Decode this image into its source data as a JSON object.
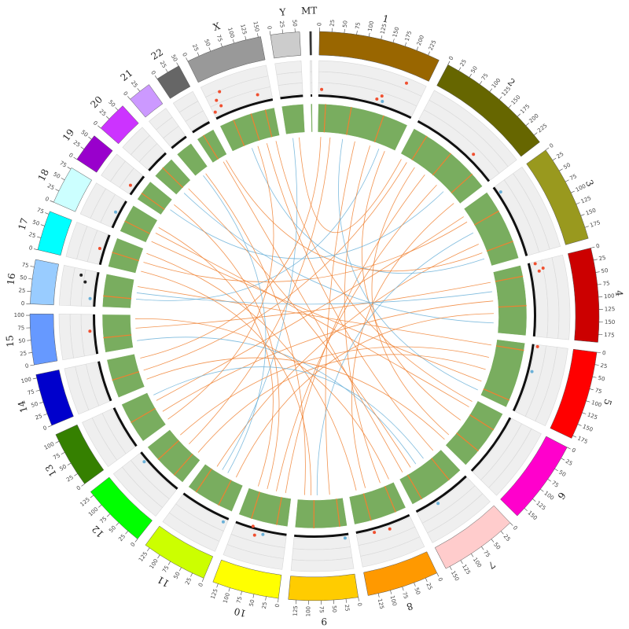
{
  "chart_data": {
    "type": "circos",
    "chromosomes": [
      {
        "name": "1",
        "size": 249,
        "color": "#996600",
        "ticks": [
          0,
          25,
          50,
          75,
          100,
          125,
          150,
          175,
          200,
          225
        ]
      },
      {
        "name": "2",
        "size": 243,
        "color": "#666600",
        "ticks": [
          0,
          25,
          50,
          75,
          100,
          125,
          150,
          175,
          200,
          225
        ]
      },
      {
        "name": "3",
        "size": 198,
        "color": "#99991e",
        "ticks": [
          0,
          25,
          50,
          75,
          100,
          125,
          150,
          175
        ]
      },
      {
        "name": "4",
        "size": 191,
        "color": "#cc0000",
        "ticks": [
          0,
          25,
          50,
          75,
          100,
          125,
          150,
          175
        ]
      },
      {
        "name": "5",
        "size": 181,
        "color": "#ff0000",
        "ticks": [
          0,
          25,
          50,
          75,
          100,
          125,
          150,
          175
        ]
      },
      {
        "name": "6",
        "size": 171,
        "color": "#ff00cc",
        "ticks": [
          0,
          25,
          50,
          75,
          100,
          125,
          150
        ]
      },
      {
        "name": "7",
        "size": 159,
        "color": "#ffcccc",
        "ticks": [
          0,
          25,
          50,
          75,
          100,
          125,
          150
        ]
      },
      {
        "name": "8",
        "size": 146,
        "color": "#ff9900",
        "ticks": [
          0,
          25,
          50,
          75,
          100,
          125
        ]
      },
      {
        "name": "9",
        "size": 141,
        "color": "#ffcc00",
        "ticks": [
          0,
          25,
          50,
          75,
          100,
          125
        ]
      },
      {
        "name": "10",
        "size": 136,
        "color": "#ffff00",
        "ticks": [
          0,
          25,
          50,
          75,
          100,
          125
        ]
      },
      {
        "name": "11",
        "size": 135,
        "color": "#ccff00",
        "ticks": [
          0,
          25,
          50,
          75,
          100,
          125
        ]
      },
      {
        "name": "12",
        "size": 134,
        "color": "#00ff00",
        "ticks": [
          0,
          25,
          50,
          75,
          100,
          125
        ]
      },
      {
        "name": "13",
        "size": 115,
        "color": "#358000",
        "ticks": [
          0,
          25,
          50,
          75,
          100
        ]
      },
      {
        "name": "14",
        "size": 107,
        "color": "#0000cc",
        "ticks": [
          0,
          25,
          50,
          75,
          100
        ]
      },
      {
        "name": "15",
        "size": 103,
        "color": "#6699ff",
        "ticks": [
          0,
          25,
          50,
          75,
          100
        ]
      },
      {
        "name": "16",
        "size": 90,
        "color": "#99ccff",
        "ticks": [
          0,
          25,
          50,
          75
        ]
      },
      {
        "name": "17",
        "size": 81,
        "color": "#00ffff",
        "ticks": [
          0,
          25,
          50,
          75
        ]
      },
      {
        "name": "18",
        "size": 78,
        "color": "#ccffff",
        "ticks": [
          0,
          25,
          50,
          75
        ]
      },
      {
        "name": "19",
        "size": 59,
        "color": "#9900cc",
        "ticks": [
          0,
          25,
          50
        ]
      },
      {
        "name": "20",
        "size": 63,
        "color": "#cc33ff",
        "ticks": [
          0,
          25,
          50
        ]
      },
      {
        "name": "21",
        "size": 48,
        "color": "#cc99ff",
        "ticks": [
          0,
          25
        ]
      },
      {
        "name": "22",
        "size": 51,
        "color": "#666666",
        "ticks": [
          0,
          25,
          50
        ]
      },
      {
        "name": "X",
        "size": 155,
        "color": "#999999",
        "ticks": [
          0,
          25,
          50,
          75,
          100,
          125,
          150
        ]
      },
      {
        "name": "Y",
        "size": 59,
        "color": "#cccccc",
        "ticks": [
          0,
          25,
          50
        ]
      },
      {
        "name": "MT",
        "size": 0.017,
        "color": "#333333",
        "ticks": []
      }
    ],
    "scatter_ylim": [
      0,
      10
    ],
    "points": [
      {
        "chr": "1",
        "pos": 8,
        "value": 1.5,
        "color": "#f05030"
      },
      {
        "chr": "1",
        "pos": 150,
        "value": 1.2,
        "color": "#f05030"
      },
      {
        "chr": "1",
        "pos": 160,
        "value": 2.5,
        "color": "#f05030"
      },
      {
        "chr": "1",
        "pos": 165,
        "value": 1.0,
        "color": "#6ab0d8"
      },
      {
        "chr": "1",
        "pos": 205,
        "value": 8.5,
        "color": "#f05030"
      },
      {
        "chr": "2",
        "pos": 165,
        "value": 1.5,
        "color": "#f05030"
      },
      {
        "chr": "3",
        "pos": 20,
        "value": 0.6,
        "color": "#6ab0d8"
      },
      {
        "chr": "4",
        "pos": 5,
        "value": 1.5,
        "color": "#f05030"
      },
      {
        "chr": "4",
        "pos": 20,
        "value": 3.5,
        "color": "#f05030"
      },
      {
        "chr": "4",
        "pos": 25,
        "value": 2.2,
        "color": "#f05030"
      },
      {
        "chr": "5",
        "pos": 5,
        "value": 1.0,
        "color": "#f05030"
      },
      {
        "chr": "5",
        "pos": 70,
        "value": 0.8,
        "color": "#6ab0d8"
      },
      {
        "chr": "7",
        "pos": 100,
        "value": 0.8,
        "color": "#6ab0d8"
      },
      {
        "chr": "8",
        "pos": 60,
        "value": 1.2,
        "color": "#f05030"
      },
      {
        "chr": "8",
        "pos": 100,
        "value": 0.8,
        "color": "#f05030"
      },
      {
        "chr": "9",
        "pos": 10,
        "value": 0.7,
        "color": "#6ab0d8"
      },
      {
        "chr": "10",
        "pos": 60,
        "value": 0.8,
        "color": "#6ab0d8"
      },
      {
        "chr": "10",
        "pos": 80,
        "value": 1.6,
        "color": "#f05030"
      },
      {
        "chr": "10",
        "pos": 90,
        "value": -0.8,
        "color": "#f05030"
      },
      {
        "chr": "11",
        "pos": 10,
        "value": 1.0,
        "color": "#6ab0d8"
      },
      {
        "chr": "12",
        "pos": 110,
        "value": 0.7,
        "color": "#6ab0d8"
      },
      {
        "chr": "15",
        "pos": 60,
        "value": 1.0,
        "color": "#f05030"
      },
      {
        "chr": "16",
        "pos": 20,
        "value": 1.0,
        "color": "#6ab0d8"
      },
      {
        "chr": "16",
        "pos": 60,
        "value": 3.0,
        "color": "#222222"
      },
      {
        "chr": "16",
        "pos": 75,
        "value": 4.5,
        "color": "#222222"
      },
      {
        "chr": "17",
        "pos": 40,
        "value": 1.0,
        "color": "#f05030"
      },
      {
        "chr": "18",
        "pos": 40,
        "value": 0.8,
        "color": "#6ab0d8"
      },
      {
        "chr": "19",
        "pos": 20,
        "value": 1.2,
        "color": "#f05030"
      },
      {
        "chr": "X",
        "pos": 5,
        "value": 1.5,
        "color": "#f05030"
      },
      {
        "chr": "X",
        "pos": 20,
        "value": 4.5,
        "color": "#f05030"
      },
      {
        "chr": "X",
        "pos": 25,
        "value": 2.5,
        "color": "#f05030"
      },
      {
        "chr": "X",
        "pos": 35,
        "value": 6.5,
        "color": "#f05030"
      },
      {
        "chr": "X",
        "pos": 120,
        "value": 2.0,
        "color": "#f05030"
      }
    ],
    "heatmap_color": "#79ad5f",
    "heat_stripes": {
      "chr": [
        "1",
        "1",
        "1",
        "2",
        "2",
        "2",
        "3",
        "3",
        "4",
        "4",
        "5",
        "5",
        "6",
        "6",
        "7",
        "7",
        "8",
        "8",
        "9",
        "9",
        "10",
        "10",
        "11",
        "11",
        "12",
        "12",
        "13",
        "14",
        "15",
        "16",
        "17",
        "18",
        "19",
        "20",
        "22",
        "X",
        "X",
        "X"
      ],
      "pos": [
        20,
        90,
        180,
        40,
        120,
        200,
        60,
        150,
        30,
        110,
        20,
        160,
        50,
        120,
        40,
        130,
        30,
        100,
        20,
        90,
        30,
        100,
        40,
        110,
        30,
        90,
        60,
        50,
        40,
        30,
        40,
        30,
        20,
        30,
        20,
        40,
        90,
        130
      ]
    },
    "stripe_color": "#f08030",
    "links": [
      {
        "chr1": "1",
        "pos1": 40,
        "chr2": "12",
        "pos2": 60,
        "color": "#f08030"
      },
      {
        "chr1": "1",
        "pos1": 120,
        "chr2": "9",
        "pos2": 40,
        "color": "#f08030"
      },
      {
        "chr1": "1",
        "pos1": 200,
        "chr2": "16",
        "pos2": 30,
        "color": "#6ab0d8"
      },
      {
        "chr1": "1",
        "pos1": 220,
        "chr2": "6",
        "pos2": 80,
        "color": "#f08030"
      },
      {
        "chr1": "2",
        "pos1": 30,
        "chr2": "14",
        "pos2": 50,
        "color": "#f08030"
      },
      {
        "chr1": "2",
        "pos1": 100,
        "chr2": "10",
        "pos2": 20,
        "color": "#f08030"
      },
      {
        "chr1": "2",
        "pos1": 180,
        "chr2": "19",
        "pos2": 30,
        "color": "#6ab0d8"
      },
      {
        "chr1": "2",
        "pos1": 230,
        "chr2": "8",
        "pos2": 90,
        "color": "#f08030"
      },
      {
        "chr1": "3",
        "pos1": 40,
        "chr2": "17",
        "pos2": 40,
        "color": "#f08030"
      },
      {
        "chr1": "3",
        "pos1": 120,
        "chr2": "11",
        "pos2": 100,
        "color": "#f08030"
      },
      {
        "chr1": "3",
        "pos1": 170,
        "chr2": "X",
        "pos2": 60,
        "color": "#6ab0d8"
      },
      {
        "chr1": "4",
        "pos1": 30,
        "chr2": "15",
        "pos2": 60,
        "color": "#f08030"
      },
      {
        "chr1": "4",
        "pos1": 90,
        "chr2": "13",
        "pos2": 40,
        "color": "#f08030"
      },
      {
        "chr1": "4",
        "pos1": 160,
        "chr2": "20",
        "pos2": 20,
        "color": "#6ab0d8"
      },
      {
        "chr1": "5",
        "pos1": 20,
        "chr2": "16",
        "pos2": 70,
        "color": "#f08030"
      },
      {
        "chr1": "5",
        "pos1": 100,
        "chr2": "12",
        "pos2": 20,
        "color": "#f08030"
      },
      {
        "chr1": "5",
        "pos1": 170,
        "chr2": "1",
        "pos2": 80,
        "color": "#6ab0d8"
      },
      {
        "chr1": "6",
        "pos1": 30,
        "chr2": "18",
        "pos2": 40,
        "color": "#f08030"
      },
      {
        "chr1": "6",
        "pos1": 140,
        "chr2": "2",
        "pos2": 60,
        "color": "#f08030"
      },
      {
        "chr1": "7",
        "pos1": 20,
        "chr2": "X",
        "pos2": 110,
        "color": "#f08030"
      },
      {
        "chr1": "7",
        "pos1": 90,
        "chr2": "15",
        "pos2": 20,
        "color": "#6ab0d8"
      },
      {
        "chr1": "7",
        "pos1": 140,
        "chr2": "22",
        "pos2": 30,
        "color": "#f08030"
      },
      {
        "chr1": "8",
        "pos1": 40,
        "chr2": "1",
        "pos2": 170,
        "color": "#f08030"
      },
      {
        "chr1": "8",
        "pos1": 120,
        "chr2": "17",
        "pos2": 70,
        "color": "#f08030"
      },
      {
        "chr1": "9",
        "pos1": 80,
        "chr2": "3",
        "pos2": 80,
        "color": "#6ab0d8"
      },
      {
        "chr1": "9",
        "pos1": 120,
        "chr2": "21",
        "pos2": 30,
        "color": "#f08030"
      },
      {
        "chr1": "10",
        "pos1": 50,
        "chr2": "2",
        "pos2": 150,
        "color": "#f08030"
      },
      {
        "chr1": "10",
        "pos1": 110,
        "chr2": "18",
        "pos2": 60,
        "color": "#f08030"
      },
      {
        "chr1": "11",
        "pos1": 30,
        "chr2": "4",
        "pos2": 130,
        "color": "#f08030"
      },
      {
        "chr1": "11",
        "pos1": 80,
        "chr2": "Y",
        "pos2": 20,
        "color": "#6ab0d8"
      },
      {
        "chr1": "12",
        "pos1": 100,
        "chr2": "5",
        "pos2": 60,
        "color": "#f08030"
      },
      {
        "chr1": "13",
        "pos1": 80,
        "chr2": "3",
        "pos2": 20,
        "color": "#f08030"
      },
      {
        "chr1": "13",
        "pos1": 100,
        "chr2": "7",
        "pos2": 60,
        "color": "#6ab0d8"
      },
      {
        "chr1": "14",
        "pos1": 20,
        "chr2": "6",
        "pos2": 160,
        "color": "#f08030"
      },
      {
        "chr1": "14",
        "pos1": 90,
        "chr2": "1",
        "pos2": 10,
        "color": "#f08030"
      },
      {
        "chr1": "15",
        "pos1": 90,
        "chr2": "8",
        "pos2": 10,
        "color": "#f08030"
      },
      {
        "chr1": "16",
        "pos1": 50,
        "chr2": "4",
        "pos2": 60,
        "color": "#6ab0d8"
      },
      {
        "chr1": "17",
        "pos1": 10,
        "chr2": "9",
        "pos2": 100,
        "color": "#f08030"
      },
      {
        "chr1": "18",
        "pos1": 10,
        "chr2": "5",
        "pos2": 140,
        "color": "#f08030"
      },
      {
        "chr1": "19",
        "pos1": 50,
        "chr2": "10",
        "pos2": 80,
        "color": "#f08030"
      },
      {
        "chr1": "20",
        "pos1": 40,
        "chr2": "7",
        "pos2": 110,
        "color": "#f08030"
      },
      {
        "chr1": "21",
        "pos1": 20,
        "chr2": "11",
        "pos2": 60,
        "color": "#6ab0d8"
      },
      {
        "chr1": "22",
        "pos1": 40,
        "chr2": "3",
        "pos2": 150,
        "color": "#f08030"
      },
      {
        "chr1": "X",
        "pos1": 140,
        "chr2": "6",
        "pos2": 10,
        "color": "#f08030"
      },
      {
        "chr1": "X",
        "pos1": 80,
        "chr2": "13",
        "pos2": 10,
        "color": "#f08030"
      },
      {
        "chr1": "Y",
        "pos1": 40,
        "chr2": "2",
        "pos2": 10,
        "color": "#f08030"
      }
    ]
  }
}
